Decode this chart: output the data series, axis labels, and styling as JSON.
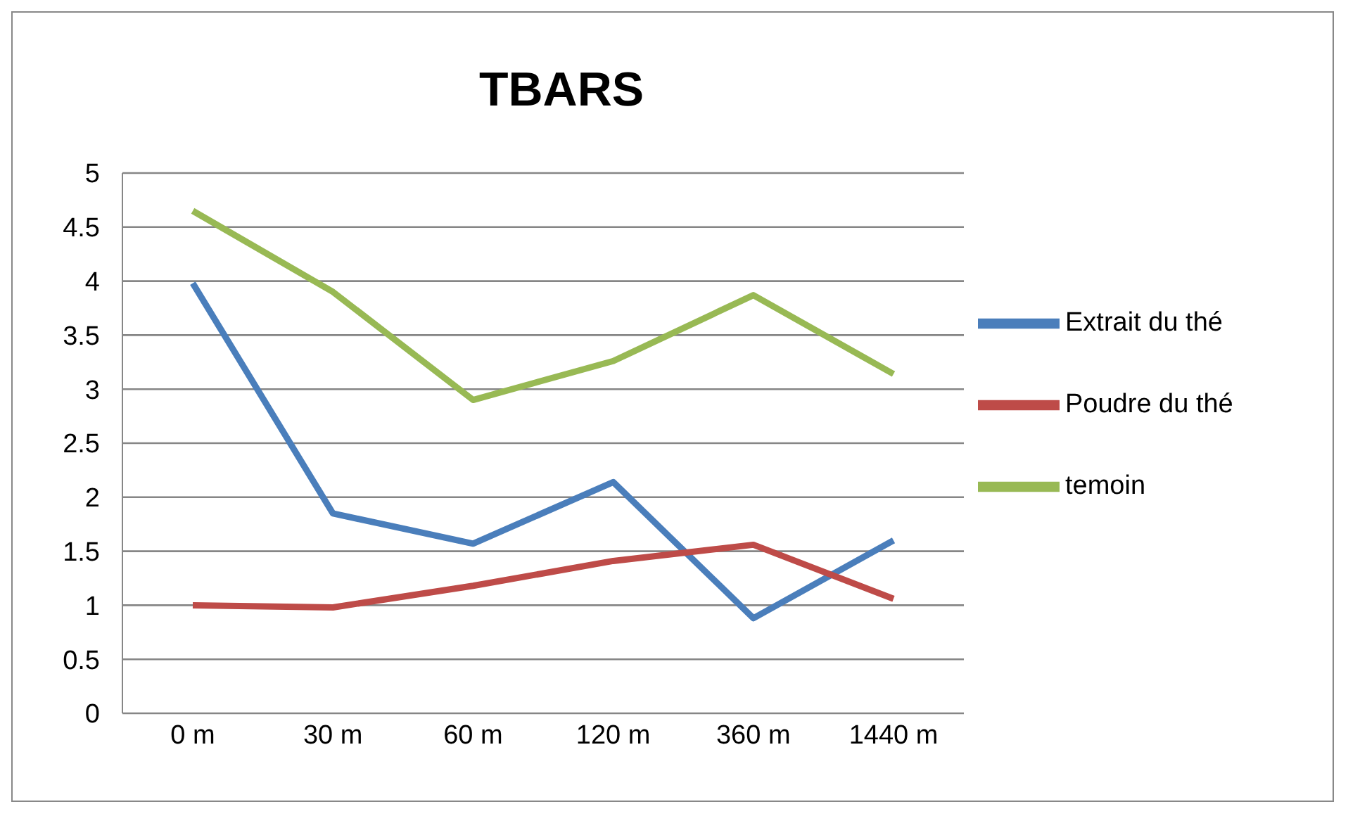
{
  "chart_data": {
    "type": "line",
    "title": "TBARS",
    "categories": [
      "0 m",
      "30 m",
      "60 m",
      "120 m",
      "360 m",
      "1440 m"
    ],
    "series": [
      {
        "name": "Extrait du thé",
        "color": "#4a7ebb",
        "values": [
          3.98,
          1.85,
          1.57,
          2.14,
          0.88,
          1.6
        ]
      },
      {
        "name": "Poudre du thé",
        "color": "#be4b48",
        "values": [
          1.0,
          0.98,
          1.18,
          1.41,
          1.56,
          1.06
        ]
      },
      {
        "name": "temoin",
        "color": "#98b954",
        "values": [
          4.65,
          3.9,
          2.9,
          3.26,
          3.87,
          3.14
        ]
      }
    ],
    "ylim": [
      0,
      5
    ],
    "yticks": [
      0,
      0.5,
      1,
      1.5,
      2,
      2.5,
      3,
      3.5,
      4,
      4.5,
      5
    ],
    "grid": "y",
    "legend": "right",
    "marker": "none",
    "line_style": "solid"
  }
}
